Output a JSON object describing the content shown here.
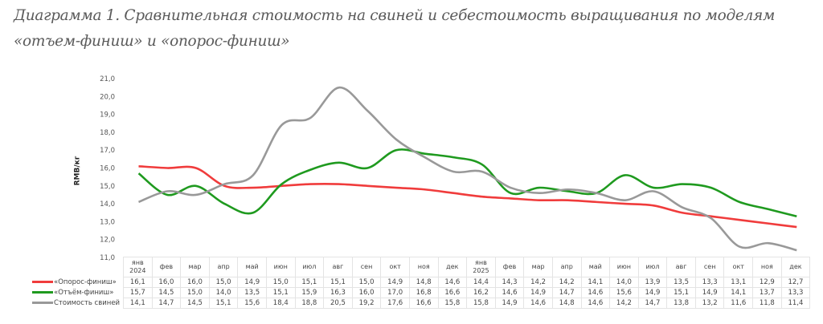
{
  "title": "Диаграмма 1. Сравнительная стоимость на свиней и себестоимость выращивания по моделям «отъем-финиш» и «опорос-финиш»",
  "chart_data": {
    "type": "line",
    "ylabel": "RMB/кг",
    "ylim": [
      11,
      21
    ],
    "yticks": [
      "11,0",
      "12,0",
      "13,0",
      "14,0",
      "15,0",
      "16,0",
      "17,0",
      "18,0",
      "19,0",
      "20,0",
      "21,0"
    ],
    "categories": [
      "янв 2024",
      "фев",
      "мар",
      "апр",
      "май",
      "июн",
      "июл",
      "авг",
      "сен",
      "окт",
      "ноя",
      "дек",
      "янв 2025",
      "фев",
      "мар",
      "апр",
      "май",
      "июн",
      "июл",
      "авг",
      "сен",
      "окт",
      "ноя",
      "дек"
    ],
    "series": [
      {
        "name": "«Опорос-финиш»",
        "color": "#f03c3c",
        "values": [
          "16,1",
          "16,0",
          "16,0",
          "15,0",
          "14,9",
          "15,0",
          "15,1",
          "15,1",
          "15,0",
          "14,9",
          "14,8",
          "14,6",
          "14,4",
          "14,3",
          "14,2",
          "14,2",
          "14,1",
          "14,0",
          "13,9",
          "13,5",
          "13,3",
          "13,1",
          "12,9",
          "12,7"
        ]
      },
      {
        "name": "«Отъём-финиш»",
        "color": "#1f9a1f",
        "values": [
          "15,7",
          "14,5",
          "15,0",
          "14,0",
          "13,5",
          "15,1",
          "15,9",
          "16,3",
          "16,0",
          "17,0",
          "16,8",
          "16,6",
          "16,2",
          "14,6",
          "14,9",
          "14,7",
          "14,6",
          "15,6",
          "14,9",
          "15,1",
          "14,9",
          "14,1",
          "13,7",
          "13,3"
        ]
      },
      {
        "name": "Стоимость свиней",
        "color": "#999999",
        "values": [
          "14,1",
          "14,7",
          "14,5",
          "15,1",
          "15,6",
          "18,4",
          "18,8",
          "20,5",
          "19,2",
          "17,6",
          "16,6",
          "15,8",
          "15,8",
          "14,9",
          "14,6",
          "14,8",
          "14,6",
          "14,2",
          "14,7",
          "13,8",
          "13,2",
          "11,6",
          "11,8",
          "11,4"
        ]
      }
    ]
  }
}
